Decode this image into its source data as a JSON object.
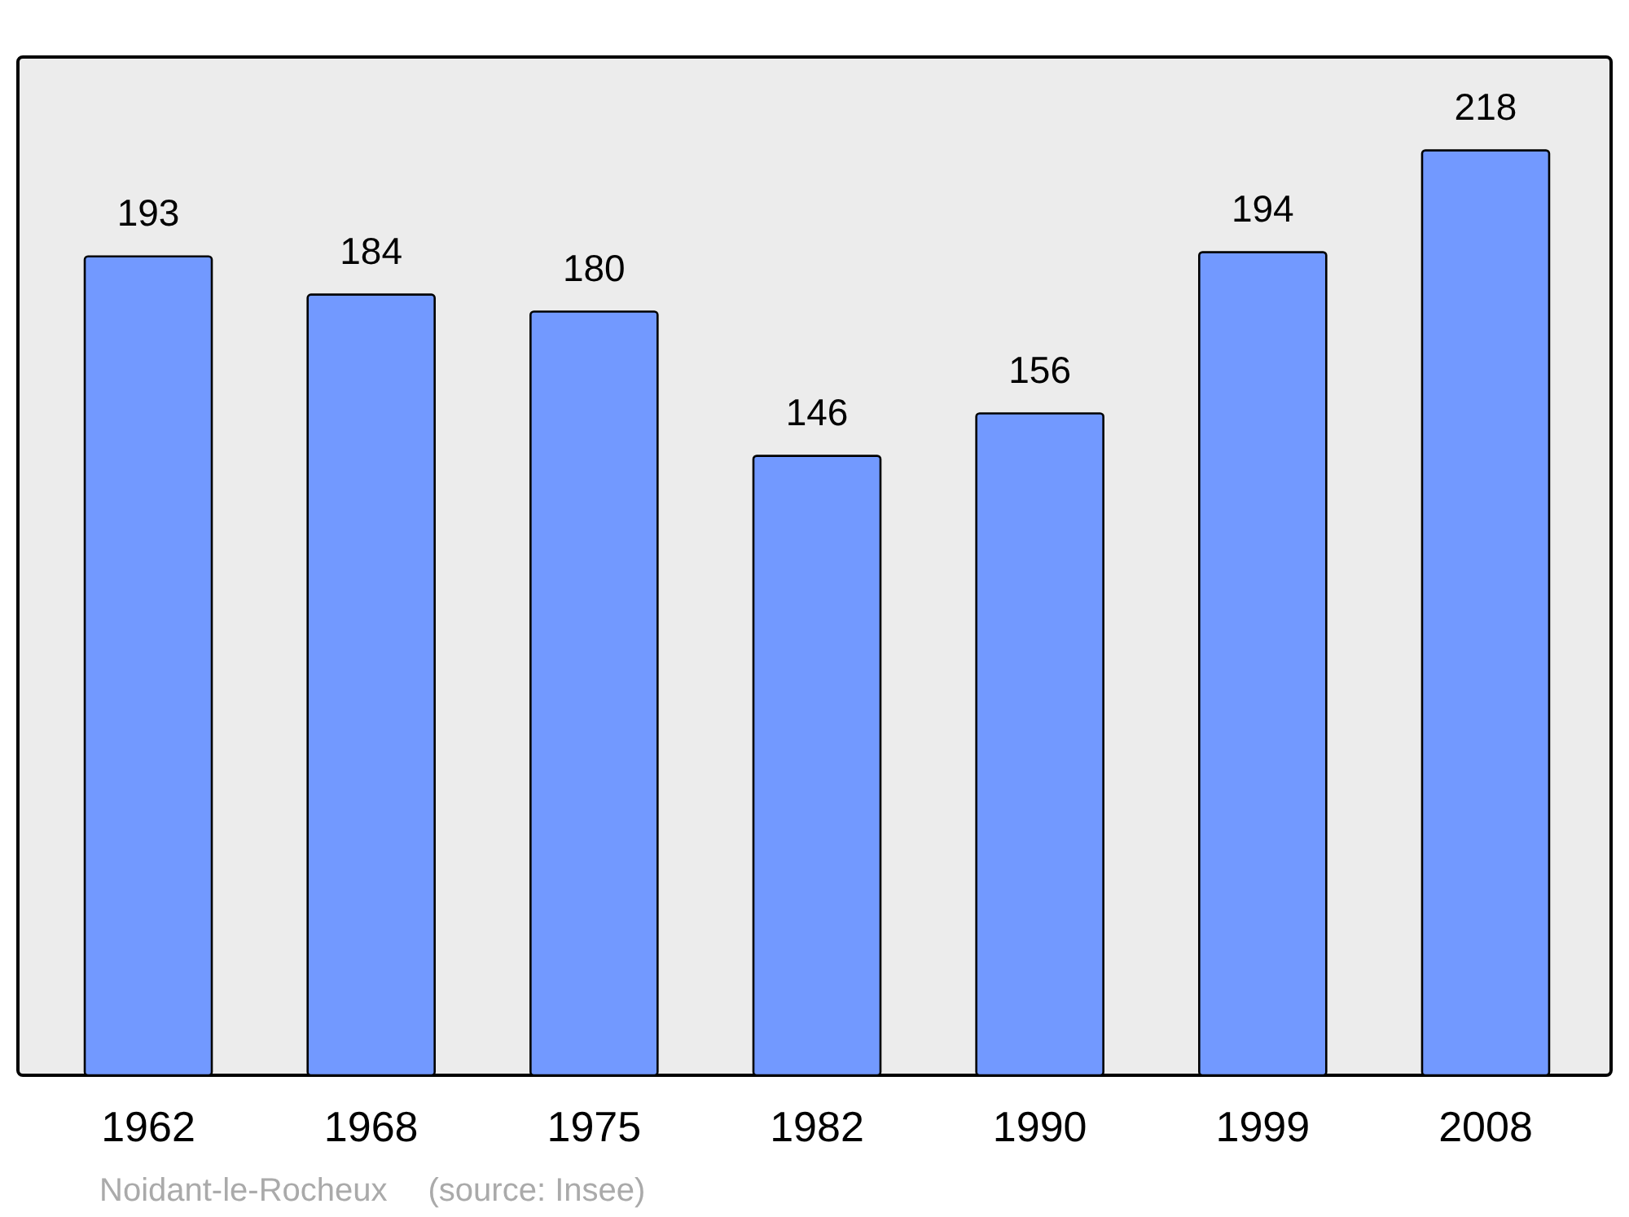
{
  "chart_data": {
    "type": "bar",
    "categories": [
      "1962",
      "1968",
      "1975",
      "1982",
      "1990",
      "1999",
      "2008"
    ],
    "values": [
      193,
      184,
      180,
      146,
      156,
      194,
      218
    ],
    "color": "#7299ff",
    "ylim": [
      0,
      240
    ],
    "data_labels": true,
    "tick_labels": "x",
    "annotations": [
      "Noidant-le-Rocheux",
      "(source: Insee)"
    ]
  }
}
